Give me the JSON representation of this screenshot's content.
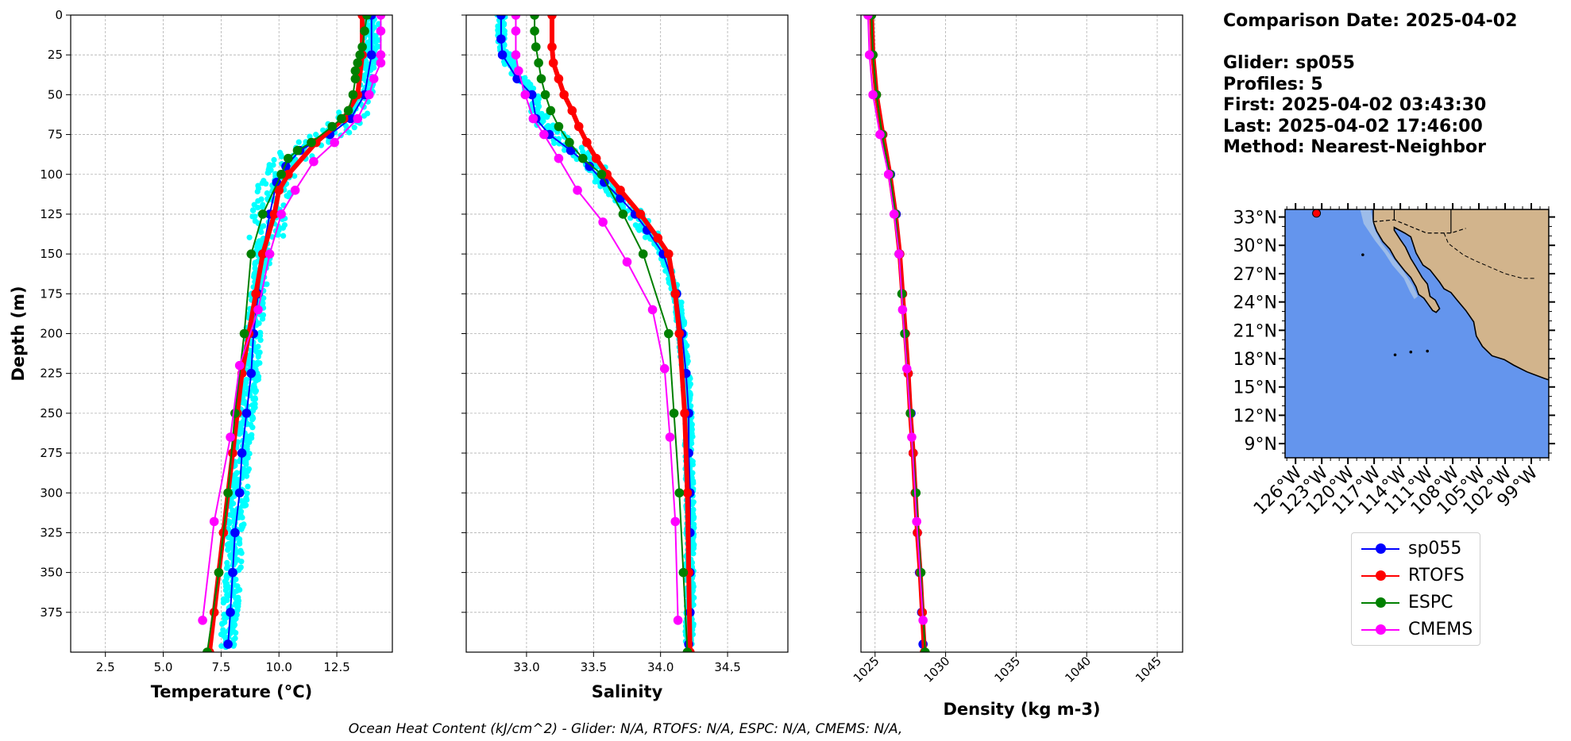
{
  "info": {
    "comparison_date": "Comparison Date: 2025-04-02",
    "glider": "Glider: sp055",
    "profiles": "Profiles: 5",
    "first": "First: 2025-04-02 03:43:30",
    "last": "Last: 2025-04-02 17:46:00",
    "method": "Method: Nearest-Neighbor"
  },
  "caption": "Ocean Heat Content (kJ/cm^2) - Glider: N/A,  RTOFS: N/A,  ESPC: N/A,  CMEMS: N/A,",
  "colors": {
    "sp055": "#0000ff",
    "RTOFS": "#ff0000",
    "ESPC": "#008000",
    "CMEMS": "#ff00ff",
    "raw": "#00ffff",
    "ocean": "#6495ed",
    "shelf": "#a7c3e8",
    "land": "#d2b48c"
  },
  "legend": [
    {
      "name": "sp055",
      "color": "#0000ff"
    },
    {
      "name": "RTOFS",
      "color": "#ff0000"
    },
    {
      "name": "ESPC",
      "color": "#008000"
    },
    {
      "name": "CMEMS",
      "color": "#ff00ff"
    }
  ],
  "map": {
    "lat_ticks": [
      "33°N",
      "30°N",
      "27°N",
      "24°N",
      "21°N",
      "18°N",
      "15°N",
      "12°N",
      "9°N"
    ],
    "lon_ticks": [
      "126°W",
      "123°W",
      "120°W",
      "117°W",
      "114°W",
      "111°W",
      "108°W",
      "105°W",
      "102°W",
      "99°W"
    ],
    "glider_location": {
      "lon": -123.6,
      "lat": 33.4
    }
  },
  "chart_data": [
    {
      "type": "line",
      "xlabel": "Temperature ($^{o}C$)",
      "xlabel_display": "Temperature (°C)",
      "ylabel": "Depth (m)",
      "xlim": [
        1.0,
        14.9
      ],
      "ylim": [
        400,
        0
      ],
      "xticks": [
        2.5,
        5.0,
        7.5,
        10.0,
        12.5
      ],
      "xtick_labels": [
        "2.5",
        "5.0",
        "7.5",
        "10.0",
        "12.5"
      ],
      "yticks": [
        0,
        25,
        50,
        75,
        100,
        125,
        150,
        175,
        200,
        225,
        250,
        275,
        300,
        325,
        350,
        375
      ],
      "ytick_labels": [
        "0",
        "25",
        "50",
        "75",
        "100",
        "125",
        "150",
        "175",
        "200",
        "225",
        "250",
        "275",
        "300",
        "325",
        "350",
        "375"
      ],
      "grid": true,
      "series": [
        {
          "name": "sp055",
          "depth": [
            0,
            25,
            50,
            65,
            75,
            85,
            95,
            105,
            125,
            150,
            175,
            200,
            225,
            250,
            275,
            300,
            325,
            350,
            375,
            395
          ],
          "values": [
            14.0,
            14.0,
            13.7,
            13.1,
            12.2,
            10.9,
            10.3,
            9.9,
            9.6,
            9.3,
            9.1,
            8.9,
            8.8,
            8.6,
            8.4,
            8.3,
            8.1,
            8.0,
            7.9,
            7.8
          ]
        },
        {
          "name": "RTOFS",
          "depth": [
            0,
            25,
            50,
            65,
            80,
            100,
            110,
            125,
            150,
            175,
            200,
            225,
            250,
            275,
            300,
            325,
            350,
            375,
            400
          ],
          "values": [
            13.6,
            13.6,
            13.4,
            12.8,
            11.6,
            10.4,
            10.0,
            9.8,
            9.3,
            9.0,
            8.7,
            8.4,
            8.2,
            8.0,
            7.8,
            7.6,
            7.4,
            7.2,
            7.0
          ]
        },
        {
          "name": "ESPC",
          "depth": [
            0,
            10,
            20,
            25,
            30,
            35,
            40,
            50,
            60,
            65,
            70,
            80,
            85,
            90,
            100,
            125,
            150,
            200,
            250,
            300,
            350,
            400
          ],
          "values": [
            13.8,
            13.7,
            13.6,
            13.5,
            13.4,
            13.3,
            13.3,
            13.2,
            13.0,
            12.7,
            12.3,
            11.4,
            10.8,
            10.4,
            10.1,
            9.3,
            8.8,
            8.5,
            8.1,
            7.8,
            7.4,
            6.9
          ]
        },
        {
          "name": "CMEMS",
          "depth": [
            0,
            10,
            25,
            30,
            40,
            50,
            65,
            80,
            92,
            110,
            125,
            150,
            185,
            220,
            265,
            318,
            380
          ],
          "values": [
            14.4,
            14.4,
            14.4,
            14.4,
            14.1,
            13.9,
            13.4,
            12.4,
            11.5,
            10.7,
            10.1,
            9.6,
            9.1,
            8.3,
            7.9,
            7.2,
            6.7
          ]
        }
      ]
    },
    {
      "type": "line",
      "xlabel": "Salinity",
      "ylabel": "",
      "xlim": [
        32.55,
        34.95
      ],
      "ylim": [
        400,
        0
      ],
      "xticks": [
        33.0,
        33.5,
        34.0,
        34.5
      ],
      "xtick_labels": [
        "33.0",
        "33.5",
        "34.0",
        "34.5"
      ],
      "grid": true,
      "series": [
        {
          "name": "sp055",
          "depth": [
            0,
            15,
            25,
            40,
            50,
            65,
            75,
            85,
            95,
            105,
            115,
            125,
            135,
            150,
            175,
            200,
            225,
            250,
            275,
            300,
            325,
            350,
            375,
            395
          ],
          "values": [
            32.81,
            32.81,
            32.82,
            32.93,
            33.04,
            33.07,
            33.17,
            33.33,
            33.47,
            33.58,
            33.7,
            33.81,
            33.9,
            34.02,
            34.12,
            34.16,
            34.19,
            34.21,
            34.21,
            34.22,
            34.22,
            34.22,
            34.22,
            34.21
          ]
        },
        {
          "name": "RTOFS",
          "depth": [
            0,
            20,
            30,
            40,
            50,
            60,
            70,
            80,
            90,
            100,
            110,
            125,
            140,
            150,
            175,
            200,
            250,
            300,
            350,
            400
          ],
          "values": [
            33.19,
            33.19,
            33.2,
            33.24,
            33.28,
            33.34,
            33.39,
            33.45,
            33.52,
            33.6,
            33.7,
            33.85,
            33.98,
            34.06,
            34.11,
            34.14,
            34.18,
            34.2,
            34.21,
            34.22
          ]
        },
        {
          "name": "ESPC",
          "depth": [
            0,
            10,
            20,
            30,
            40,
            50,
            60,
            70,
            80,
            90,
            100,
            125,
            150,
            200,
            250,
            300,
            350,
            400
          ],
          "values": [
            33.06,
            33.06,
            33.07,
            33.09,
            33.11,
            33.14,
            33.18,
            33.24,
            33.32,
            33.42,
            33.56,
            33.72,
            33.87,
            34.06,
            34.1,
            34.14,
            34.17,
            34.2
          ]
        },
        {
          "name": "CMEMS",
          "depth": [
            0,
            10,
            25,
            35,
            50,
            65,
            75,
            90,
            110,
            130,
            155,
            185,
            222,
            265,
            318,
            380
          ],
          "values": [
            32.92,
            32.92,
            32.92,
            32.94,
            32.99,
            33.05,
            33.13,
            33.24,
            33.38,
            33.57,
            33.75,
            33.94,
            34.03,
            34.07,
            34.11,
            34.13
          ]
        }
      ]
    },
    {
      "type": "line",
      "xlabel": "Density (kg m-3)",
      "ylabel": "",
      "xlim": [
        1024,
        1046.8
      ],
      "ylim": [
        400,
        0
      ],
      "xticks": [
        1025,
        1030,
        1035,
        1040,
        1045
      ],
      "xtick_labels": [
        "1025",
        "1030",
        "1035",
        "1040",
        "1045"
      ],
      "grid": true,
      "series": [
        {
          "name": "sp055",
          "depth": [
            0,
            25,
            50,
            75,
            100,
            125,
            150,
            175,
            200,
            225,
            250,
            275,
            300,
            325,
            350,
            375,
            395
          ],
          "values": [
            1024.65,
            1024.75,
            1025.0,
            1025.55,
            1026.1,
            1026.5,
            1026.75,
            1026.95,
            1027.15,
            1027.35,
            1027.55,
            1027.7,
            1027.85,
            1028.0,
            1028.15,
            1028.3,
            1028.4
          ]
        },
        {
          "name": "RTOFS",
          "depth": [
            0,
            25,
            50,
            75,
            100,
            125,
            150,
            175,
            200,
            225,
            250,
            275,
            300,
            325,
            350,
            375,
            400
          ],
          "values": [
            1024.75,
            1024.85,
            1025.1,
            1025.55,
            1026.05,
            1026.45,
            1026.75,
            1026.95,
            1027.15,
            1027.35,
            1027.5,
            1027.7,
            1027.85,
            1028.0,
            1028.2,
            1028.35,
            1028.5
          ]
        },
        {
          "name": "ESPC",
          "depth": [
            0,
            25,
            50,
            75,
            100,
            125,
            150,
            175,
            200,
            250,
            300,
            350,
            400
          ],
          "values": [
            1024.75,
            1024.85,
            1025.1,
            1025.5,
            1026.05,
            1026.45,
            1026.7,
            1026.9,
            1027.1,
            1027.5,
            1027.9,
            1028.25,
            1028.55
          ]
        },
        {
          "name": "CMEMS",
          "depth": [
            0,
            25,
            50,
            75,
            100,
            125,
            150,
            185,
            222,
            265,
            318,
            380
          ],
          "values": [
            1024.5,
            1024.6,
            1024.85,
            1025.35,
            1025.95,
            1026.35,
            1026.7,
            1026.95,
            1027.25,
            1027.6,
            1027.95,
            1028.4
          ]
        }
      ]
    }
  ]
}
